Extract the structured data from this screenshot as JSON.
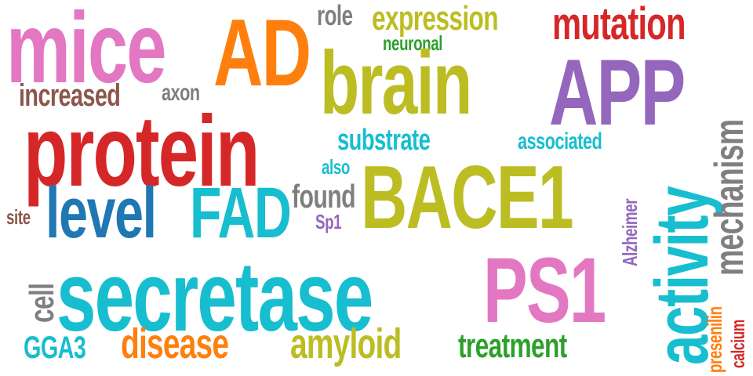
{
  "words": {
    "mice": {
      "text": "mice",
      "color": "#e377c2"
    },
    "ad": {
      "text": "AD",
      "color": "#ff7f0e"
    },
    "role": {
      "text": "role",
      "color": "#7f7f7f"
    },
    "expression": {
      "text": "expression",
      "color": "#bcbd22"
    },
    "mutation": {
      "text": "mutation",
      "color": "#d62728"
    },
    "neuronal": {
      "text": "neuronal",
      "color": "#2ca02c"
    },
    "brain": {
      "text": "brain",
      "color": "#bcbd22"
    },
    "app": {
      "text": "APP",
      "color": "#9467bd"
    },
    "increased": {
      "text": "increased",
      "color": "#8c564b"
    },
    "axon": {
      "text": "axon",
      "color": "#7f7f7f"
    },
    "protein": {
      "text": "protein",
      "color": "#d62728"
    },
    "substrate": {
      "text": "substrate",
      "color": "#17becf"
    },
    "associated": {
      "text": "associated",
      "color": "#17becf"
    },
    "also": {
      "text": "also",
      "color": "#17becf"
    },
    "bace1": {
      "text": "BACE1",
      "color": "#bcbd22"
    },
    "level": {
      "text": "level",
      "color": "#1f77b4"
    },
    "fad": {
      "text": "FAD",
      "color": "#17becf"
    },
    "found": {
      "text": "found",
      "color": "#7f7f7f"
    },
    "site": {
      "text": "site",
      "color": "#8c564b"
    },
    "sp1": {
      "text": "Sp1",
      "color": "#9467bd"
    },
    "secretase": {
      "text": "secretase",
      "color": "#17becf"
    },
    "ps1": {
      "text": "PS1",
      "color": "#e377c2"
    },
    "cell": {
      "text": "cell",
      "color": "#7f7f7f"
    },
    "gga3": {
      "text": "GGA3",
      "color": "#17becf"
    },
    "disease": {
      "text": "disease",
      "color": "#ff7f0e"
    },
    "amyloid": {
      "text": "amyloid",
      "color": "#bcbd22"
    },
    "treatment": {
      "text": "treatment",
      "color": "#2ca02c"
    },
    "alzheimer": {
      "text": "Alzheimer",
      "color": "#9467bd"
    },
    "activity": {
      "text": "activity",
      "color": "#17becf"
    },
    "mechanism": {
      "text": "mechanism",
      "color": "#7f7f7f"
    },
    "presenilin": {
      "text": "presenilin",
      "color": "#ff7f0e"
    },
    "calcium": {
      "text": "calcium",
      "color": "#d62728"
    }
  }
}
